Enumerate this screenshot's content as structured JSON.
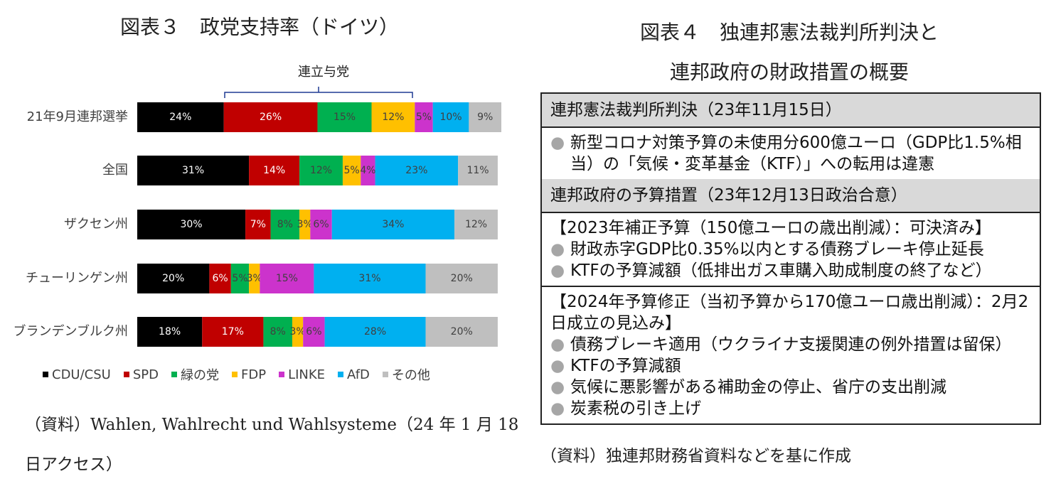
{
  "chart_data": {
    "type": "bar",
    "orientation": "horizontal",
    "stacked": true,
    "title": "図表３　政党支持率（ドイツ）",
    "annotation": "連立与党",
    "categories": [
      "21年9月連邦選挙",
      "全国",
      "ザクセン州",
      "チューリンゲン州",
      "ブランデンブルク州"
    ],
    "xlim": [
      0,
      101
    ],
    "series": [
      {
        "name": "CDU/CSU",
        "color": "#000000",
        "values": [
          24,
          31,
          30,
          20,
          18
        ],
        "value_labels": [
          "24%",
          "31%",
          "30%",
          "20%",
          "18%"
        ]
      },
      {
        "name": "SPD",
        "color": "#c00000",
        "values": [
          26,
          14,
          7,
          6,
          17
        ],
        "value_labels": [
          "26%",
          "14%",
          "7%",
          "6%",
          "17%"
        ]
      },
      {
        "name": "緑の党",
        "color": "#00b050",
        "values": [
          15,
          12,
          8,
          5,
          8
        ],
        "value_labels": [
          "15%",
          "12%",
          "8%",
          "5%",
          "8%"
        ]
      },
      {
        "name": "FDP",
        "color": "#ffc000",
        "values": [
          12,
          5,
          3,
          3,
          3
        ],
        "value_labels": [
          "12%",
          "5%",
          "3%",
          "3%",
          "3%"
        ]
      },
      {
        "name": "LINKE",
        "color": "#cc33cc",
        "values": [
          5,
          4,
          6,
          15,
          6
        ],
        "value_labels": [
          "5%",
          "4%",
          "6%",
          "15%",
          "6%"
        ]
      },
      {
        "name": "AfD",
        "color": "#00b0f0",
        "values": [
          10,
          23,
          34,
          31,
          28
        ],
        "value_labels": [
          "10%",
          "23%",
          "34%",
          "31%",
          "28%"
        ]
      },
      {
        "name": "その他",
        "color": "#bfbfbf",
        "values": [
          9,
          11,
          12,
          20,
          20
        ],
        "value_labels": [
          "9%",
          "11%",
          "12%",
          "20%",
          "20%"
        ]
      }
    ],
    "source": "（資料）Wahlen, Wahlrecht und Wahlsysteme（24 年 1 月 18 日アクセス）"
  },
  "document": {
    "title_lines": [
      "図表４　独連邦憲法裁判所判決と",
      "連邦政府の財政措置の概要"
    ],
    "sections": [
      {
        "header": "連邦憲法裁判所判決（23年11月15日）",
        "blocks": [
          {
            "items": [
              "新型コロナ対策予算の未使用分600億ユーロ（GDP比1.5%相当）の「気候・変革基金（KTF）」への転用は違憲"
            ]
          }
        ]
      },
      {
        "header": "連邦政府の予算措置（23年12月13日政治合意）",
        "blocks": [
          {
            "heading": "【2023年補正予算（150億ユーロの歳出削減）：可決済み】",
            "items": [
              "財政赤字GDP比0.35%以内とする債務ブレーキ停止延長",
              "KTFの予算減額（低排出ガス車購入助成制度の終了など）"
            ]
          },
          {
            "heading": "【2024年予算修正（当初予算から170億ユーロ歳出削減）：2月2日成立の見込み】",
            "items": [
              "債務ブレーキ適用（ウクライナ支援関連の例外措置は留保）",
              "KTFの予算減額",
              "気候に悪影響がある補助金の停止、省庁の支出削減",
              "炭素税の引き上げ"
            ]
          }
        ]
      }
    ],
    "source": "（資料）独連邦財務省資料などを基に作成"
  }
}
